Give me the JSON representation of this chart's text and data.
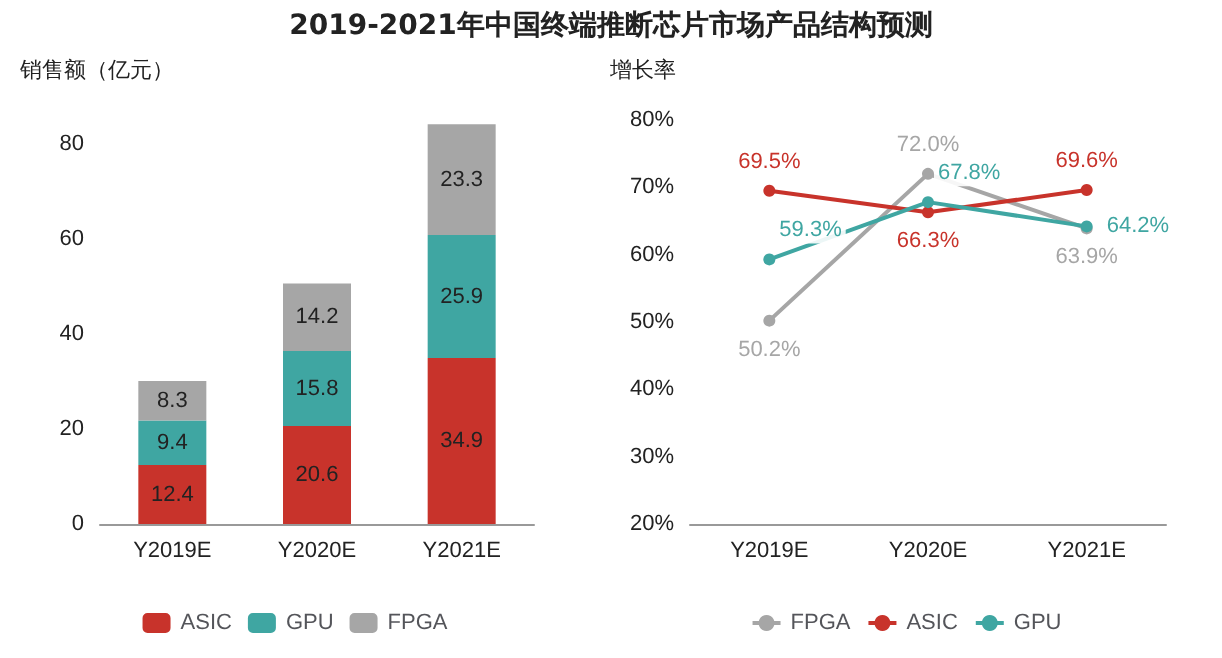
{
  "chart_data": [
    {
      "type": "bar",
      "title": "2019-2021年中国终端推断芯片市场产品结构预测",
      "ylabel": "销售额（亿元）",
      "categories": [
        "Y2019E",
        "Y2020E",
        "Y2021E"
      ],
      "stacked": true,
      "series": [
        {
          "name": "ASIC",
          "color": "#c8332b",
          "values": [
            12.4,
            20.6,
            34.9
          ]
        },
        {
          "name": "GPU",
          "color": "#3fa6a2",
          "values": [
            9.4,
            15.8,
            25.9
          ]
        },
        {
          "name": "FPGA",
          "color": "#a6a6a6",
          "values": [
            8.3,
            14.2,
            23.3
          ]
        }
      ],
      "ylim": [
        0,
        85
      ],
      "yticks": [
        0,
        20,
        40,
        60,
        80
      ],
      "data_labels": true,
      "legend": "bottom"
    },
    {
      "type": "line",
      "ylabel": "增长率",
      "categories": [
        "Y2019E",
        "Y2020E",
        "Y2021E"
      ],
      "series": [
        {
          "name": "FPGA",
          "color": "#a6a6a6",
          "values": [
            50.2,
            72.0,
            63.9
          ],
          "value_labels": [
            "50.2%",
            "72.0%",
            "63.9%"
          ]
        },
        {
          "name": "ASIC",
          "color": "#c8332b",
          "values": [
            69.5,
            66.3,
            69.6
          ],
          "value_labels": [
            "69.5%",
            "66.3%",
            "69.6%"
          ]
        },
        {
          "name": "GPU",
          "color": "#3fa6a2",
          "values": [
            59.3,
            67.8,
            64.2
          ],
          "value_labels": [
            "59.3%",
            "67.8%",
            "64.2%"
          ]
        }
      ],
      "ylim": [
        20,
        80
      ],
      "yticks": [
        {
          "value": 20,
          "label": "20%"
        },
        {
          "value": 30,
          "label": "30%"
        },
        {
          "value": 40,
          "label": "40%"
        },
        {
          "value": 50,
          "label": "50%"
        },
        {
          "value": 60,
          "label": "60%"
        },
        {
          "value": 70,
          "label": "70%"
        },
        {
          "value": 80,
          "label": "80%"
        }
      ],
      "marker": "circle",
      "legend": "bottom"
    }
  ]
}
